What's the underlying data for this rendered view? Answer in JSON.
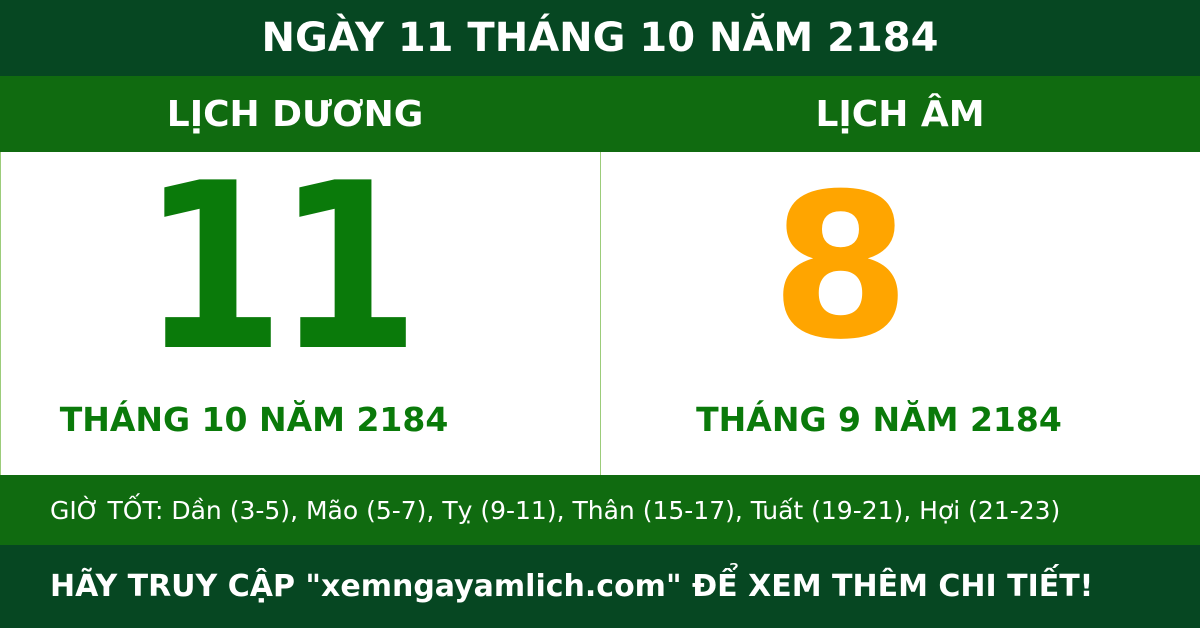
{
  "title": "NGÀY 11 THÁNG 10 NĂM 2184",
  "solar": {
    "label": "LỊCH DƯƠNG",
    "day": "11",
    "month_year": "THÁNG 10 NĂM 2184"
  },
  "lunar": {
    "label": "LỊCH ÂM",
    "day": "8",
    "month_year": "THÁNG 9 NĂM 2184"
  },
  "good_hours": "GIỜ TỐT: Dần (3-5), Mão (5-7), Tỵ (9-11), Thân (15-17), Tuất (19-21), Hợi (21-23)",
  "footer": "HÃY TRUY CẬP \"xemngayamlich.com\" ĐỂ XEM THÊM CHI TIẾT!",
  "colors": {
    "dark_green": "#064722",
    "green": "#106b10",
    "solar_day": "#0a7a0a",
    "lunar_day": "#ffa500"
  }
}
